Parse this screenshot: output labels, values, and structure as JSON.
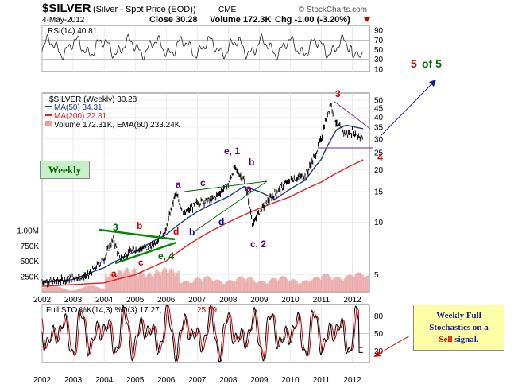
{
  "header": {
    "symbol": "$SILVER",
    "description": "(Silver - Spot Price (EOD))",
    "exchange": "CME",
    "watermark": "© StockCharts.com",
    "date": "4-May-2012",
    "close_label": "Close 30.28",
    "volume_label": "Volume 172.3K",
    "chg_label": "Chg -1.00 (-3.20%)"
  },
  "rsi_panel": {
    "label": "RSI(14) 40.81",
    "ticks": [
      "90",
      "70",
      "50",
      "30",
      "10"
    ]
  },
  "price_panel": {
    "title": "$SILVER (Weekly) 30.28",
    "legend_ma50": "MA(50) 34.31",
    "legend_ma200": "MA(200) 22.81",
    "legend_volume": "Volume 172.31K, EMA(60) 233.24K",
    "right_ticks": [
      "50",
      "45",
      "40",
      "35",
      "30",
      "25",
      "20",
      "15",
      "10",
      "5"
    ],
    "volume_ticks": [
      "1.00M",
      "750K",
      "500K",
      "250K"
    ]
  },
  "sto_panel": {
    "label": "Full STO %K(14,3) %D(3) 17.27,",
    "label_d": "25.59",
    "ticks": [
      "80",
      "50",
      "20"
    ]
  },
  "x_axis_years": [
    "2002",
    "2003",
    "2004",
    "2005",
    "2006",
    "2007",
    "2008",
    "2009",
    "2010",
    "2011",
    "2012"
  ],
  "annotations": {
    "weekly_label": "Weekly",
    "five_of_five_a": "5",
    "five_of_five_b": "of 5",
    "sto_note_line1": "Weekly Full",
    "sto_note_line2": "Stochastics on a",
    "sto_note_sell": "Sell",
    "sto_note_tail": "signal.",
    "wave_labels": [
      {
        "text": "3",
        "color": "#006600"
      },
      {
        "text": "b",
        "color": "#cc0000"
      },
      {
        "text": "d",
        "color": "#cc0000"
      },
      {
        "text": "a",
        "color": "#cc0000"
      },
      {
        "text": "c",
        "color": "#cc0000"
      },
      {
        "text": "e, 4",
        "color": "#006600"
      },
      {
        "text": "a",
        "color": "#660066"
      },
      {
        "text": "c",
        "color": "#660066"
      },
      {
        "text": "b",
        "color": "#000099"
      },
      {
        "text": "d",
        "color": "#000099"
      },
      {
        "text": "e, 1",
        "color": "#660066"
      },
      {
        "text": "b",
        "color": "#660066"
      },
      {
        "text": "a",
        "color": "#660066"
      },
      {
        "text": "c, 2",
        "color": "#660066"
      },
      {
        "text": "3",
        "color": "#cc0000"
      },
      {
        "text": "4",
        "color": "#cc0000"
      }
    ]
  },
  "colors": {
    "price_bar": "#000000",
    "ma50": "#1f3a93",
    "ma200": "#dd2222",
    "volume": "#e8a0a0",
    "sto_k": "#000000",
    "sto_d": "#cc0000",
    "five_red": "#cc0000",
    "five_green": "#006600",
    "weekly_box_bg": "#c8f0c8",
    "note_box_bg": "#ffffa8",
    "arrow": "#1a1a8c"
  },
  "chart_data": {
    "type": "line",
    "title": "$SILVER (Silver - Spot Price (EOD))",
    "x_years": [
      2002,
      2003,
      2004,
      2005,
      2006,
      2007,
      2008,
      2009,
      2010,
      2011,
      2012
    ],
    "price_scale": "log",
    "price_range": [
      4,
      55
    ],
    "series": [
      {
        "name": "$SILVER (Weekly)",
        "x": [
          2002.0,
          2002.5,
          2003.0,
          2003.5,
          2004.0,
          2004.3,
          2004.5,
          2005.0,
          2005.5,
          2006.0,
          2006.3,
          2006.6,
          2007.0,
          2007.5,
          2008.0,
          2008.2,
          2008.5,
          2008.8,
          2009.0,
          2009.5,
          2010.0,
          2010.5,
          2010.8,
          2011.0,
          2011.3,
          2011.5,
          2011.8,
          2012.0,
          2012.35
        ],
        "values": [
          4.6,
          4.6,
          4.8,
          5.0,
          6.2,
          8.0,
          6.2,
          7.0,
          7.2,
          9.0,
          14.5,
          11.0,
          13.0,
          13.5,
          16.5,
          20.5,
          17.5,
          9.5,
          11.5,
          14.5,
          17.5,
          18.5,
          24.0,
          30.0,
          48.0,
          36.0,
          32.0,
          33.0,
          30.28
        ]
      },
      {
        "name": "MA(50)",
        "x": [
          2002.0,
          2003.0,
          2004.0,
          2005.0,
          2006.0,
          2007.0,
          2008.0,
          2008.5,
          2009.0,
          2009.5,
          2010.0,
          2010.5,
          2011.0,
          2011.5,
          2011.8,
          2012.35
        ],
        "values": [
          4.5,
          4.7,
          5.5,
          6.8,
          8.5,
          11.5,
          14.0,
          16.0,
          15.0,
          13.5,
          15.5,
          17.5,
          23.0,
          34.0,
          36.0,
          34.31
        ]
      },
      {
        "name": "MA(200)",
        "x": [
          2002.0,
          2004.0,
          2005.0,
          2006.0,
          2007.0,
          2008.0,
          2009.0,
          2010.0,
          2011.0,
          2012.35
        ],
        "values": [
          4.3,
          4.5,
          5.0,
          6.0,
          8.0,
          10.0,
          12.0,
          14.0,
          17.0,
          22.81
        ]
      }
    ],
    "rsi": {
      "range": [
        10,
        90
      ],
      "last": 40.81
    },
    "stochastics": {
      "k_last": 17.27,
      "d_last": 25.59,
      "range": [
        0,
        100
      ]
    },
    "volume_last": "172.31K",
    "volume_ema60": "233.24K"
  }
}
